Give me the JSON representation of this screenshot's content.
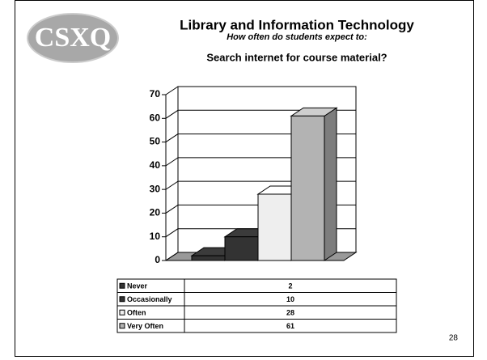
{
  "header": {
    "logo": "CSXQ",
    "title": "Library and Information Technology",
    "subtitle": "How often do students expect to:"
  },
  "chart_data": {
    "type": "bar3d",
    "title": "Search internet for course material?",
    "categories": [
      "Never",
      "Occasionally",
      "Often",
      "Very Often"
    ],
    "values": [
      2,
      10,
      28,
      61
    ],
    "colors": [
      "#333333",
      "#333333",
      "#eeeeee",
      "#b3b3b3"
    ],
    "ylim": [
      0,
      70
    ],
    "yticks": [
      0,
      10,
      20,
      30,
      40,
      50,
      60,
      70
    ],
    "grid": true
  },
  "page_number": "28"
}
